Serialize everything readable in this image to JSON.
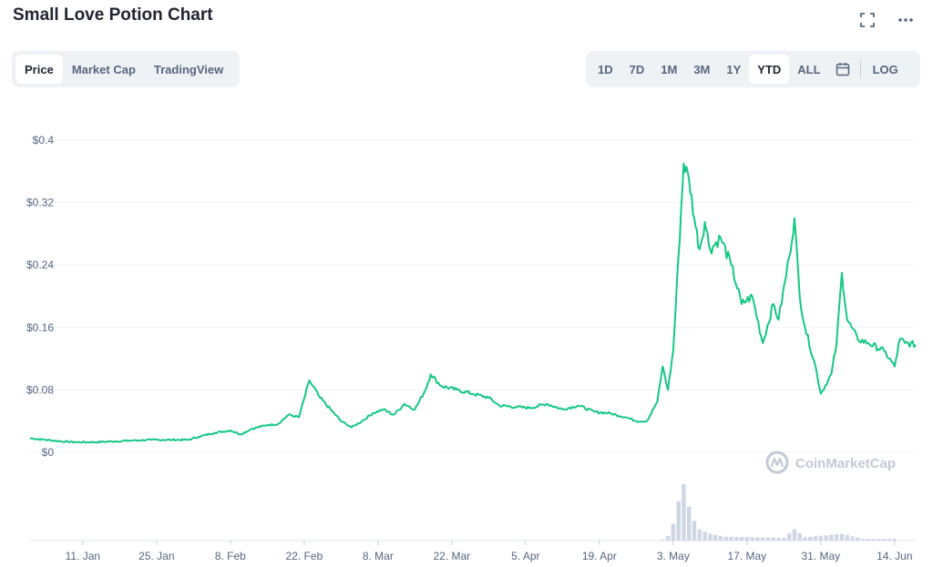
{
  "header": {
    "title": "Small Love Potion Chart",
    "fullscreen_icon": "fullscreen-icon",
    "more_icon": "more-dots-icon"
  },
  "tabs": [
    {
      "label": "Price",
      "active": true
    },
    {
      "label": "Market Cap",
      "active": false
    },
    {
      "label": "TradingView",
      "active": false
    }
  ],
  "time_ranges": [
    {
      "label": "1D",
      "active": false
    },
    {
      "label": "7D",
      "active": false
    },
    {
      "label": "1M",
      "active": false
    },
    {
      "label": "3M",
      "active": false
    },
    {
      "label": "1Y",
      "active": false
    },
    {
      "label": "YTD",
      "active": true
    },
    {
      "label": "ALL",
      "active": false
    }
  ],
  "calendar_icon": "calendar-icon",
  "log_label": "LOG",
  "watermark": "CoinMarketCap",
  "colors": {
    "line": "#16c784",
    "volume": "#cfd6e4",
    "grid": "#eff2f5",
    "axis_text": "#58667e"
  },
  "chart_data": {
    "type": "line",
    "title": "",
    "xlabel": "",
    "ylabel": "",
    "ylim": [
      0,
      0.4
    ],
    "y_ticks": [
      {
        "value": 0,
        "label": "$0"
      },
      {
        "value": 0.08,
        "label": "$0.08"
      },
      {
        "value": 0.16,
        "label": "$0.16"
      },
      {
        "value": 0.24,
        "label": "$0.24"
      },
      {
        "value": 0.32,
        "label": "$0.32"
      },
      {
        "value": 0.4,
        "label": "$0.4"
      }
    ],
    "xlim": [
      "2021-01-01",
      "2021-06-18"
    ],
    "x_ticks": [
      {
        "date": "2021-01-11",
        "label": "11. Jan"
      },
      {
        "date": "2021-01-25",
        "label": "25. Jan"
      },
      {
        "date": "2021-02-08",
        "label": "8. Feb"
      },
      {
        "date": "2021-02-22",
        "label": "22. Feb"
      },
      {
        "date": "2021-03-08",
        "label": "8. Mar"
      },
      {
        "date": "2021-03-22",
        "label": "22. Mar"
      },
      {
        "date": "2021-04-05",
        "label": "5. Apr"
      },
      {
        "date": "2021-04-19",
        "label": "19. Apr"
      },
      {
        "date": "2021-05-03",
        "label": "3. May"
      },
      {
        "date": "2021-05-17",
        "label": "17. May"
      },
      {
        "date": "2021-05-31",
        "label": "31. May"
      },
      {
        "date": "2021-06-14",
        "label": "14. Jun"
      }
    ],
    "grid": true,
    "series": [
      {
        "points": [
          [
            "2021-01-01",
            0.018
          ],
          [
            "2021-01-04",
            0.016
          ],
          [
            "2021-01-07",
            0.014
          ],
          [
            "2021-01-10",
            0.013
          ],
          [
            "2021-01-13",
            0.013
          ],
          [
            "2021-01-17",
            0.014
          ],
          [
            "2021-01-20",
            0.015
          ],
          [
            "2021-01-24",
            0.016
          ],
          [
            "2021-01-28",
            0.016
          ],
          [
            "2021-01-31",
            0.016
          ],
          [
            "2021-02-02",
            0.02
          ],
          [
            "2021-02-05",
            0.025
          ],
          [
            "2021-02-08",
            0.028
          ],
          [
            "2021-02-10",
            0.023
          ],
          [
            "2021-02-12",
            0.03
          ],
          [
            "2021-02-15",
            0.035
          ],
          [
            "2021-02-17",
            0.036
          ],
          [
            "2021-02-19",
            0.048
          ],
          [
            "2021-02-21",
            0.045
          ],
          [
            "2021-02-23",
            0.092
          ],
          [
            "2021-02-25",
            0.07
          ],
          [
            "2021-02-27",
            0.055
          ],
          [
            "2021-03-01",
            0.04
          ],
          [
            "2021-03-03",
            0.032
          ],
          [
            "2021-03-05",
            0.04
          ],
          [
            "2021-03-07",
            0.05
          ],
          [
            "2021-03-09",
            0.055
          ],
          [
            "2021-03-11",
            0.048
          ],
          [
            "2021-03-13",
            0.062
          ],
          [
            "2021-03-15",
            0.055
          ],
          [
            "2021-03-17",
            0.08
          ],
          [
            "2021-03-18",
            0.1
          ],
          [
            "2021-03-20",
            0.085
          ],
          [
            "2021-03-23",
            0.08
          ],
          [
            "2021-03-26",
            0.075
          ],
          [
            "2021-03-29",
            0.07
          ],
          [
            "2021-03-31",
            0.06
          ],
          [
            "2021-04-03",
            0.058
          ],
          [
            "2021-04-06",
            0.057
          ],
          [
            "2021-04-09",
            0.062
          ],
          [
            "2021-04-12",
            0.055
          ],
          [
            "2021-04-15",
            0.06
          ],
          [
            "2021-04-18",
            0.052
          ],
          [
            "2021-04-21",
            0.05
          ],
          [
            "2021-04-24",
            0.045
          ],
          [
            "2021-04-26",
            0.04
          ],
          [
            "2021-04-28",
            0.04
          ],
          [
            "2021-04-30",
            0.065
          ],
          [
            "2021-05-01",
            0.11
          ],
          [
            "2021-05-02",
            0.08
          ],
          [
            "2021-05-03",
            0.13
          ],
          [
            "2021-05-04",
            0.25
          ],
          [
            "2021-05-05",
            0.37
          ],
          [
            "2021-05-06",
            0.35
          ],
          [
            "2021-05-07",
            0.3
          ],
          [
            "2021-05-08",
            0.26
          ],
          [
            "2021-05-09",
            0.295
          ],
          [
            "2021-05-10",
            0.26
          ],
          [
            "2021-05-12",
            0.275
          ],
          [
            "2021-05-14",
            0.24
          ],
          [
            "2021-05-16",
            0.19
          ],
          [
            "2021-05-18",
            0.2
          ],
          [
            "2021-05-20",
            0.14
          ],
          [
            "2021-05-22",
            0.19
          ],
          [
            "2021-05-23",
            0.17
          ],
          [
            "2021-05-25",
            0.25
          ],
          [
            "2021-05-26",
            0.3
          ],
          [
            "2021-05-27",
            0.2
          ],
          [
            "2021-05-28",
            0.16
          ],
          [
            "2021-05-30",
            0.11
          ],
          [
            "2021-05-31",
            0.075
          ],
          [
            "2021-06-02",
            0.1
          ],
          [
            "2021-06-03",
            0.14
          ],
          [
            "2021-06-04",
            0.23
          ],
          [
            "2021-06-05",
            0.17
          ],
          [
            "2021-06-07",
            0.145
          ],
          [
            "2021-06-09",
            0.14
          ],
          [
            "2021-06-12",
            0.13
          ],
          [
            "2021-06-14",
            0.11
          ],
          [
            "2021-06-15",
            0.145
          ],
          [
            "2021-06-16",
            0.14
          ],
          [
            "2021-06-18",
            0.138
          ]
        ]
      }
    ],
    "volume": {
      "points": [
        [
          "2021-05-01",
          0.02
        ],
        [
          "2021-05-02",
          0.08
        ],
        [
          "2021-05-03",
          0.3
        ],
        [
          "2021-05-04",
          0.7
        ],
        [
          "2021-05-05",
          1.0
        ],
        [
          "2021-05-06",
          0.6
        ],
        [
          "2021-05-07",
          0.35
        ],
        [
          "2021-05-08",
          0.2
        ],
        [
          "2021-05-10",
          0.12
        ],
        [
          "2021-05-13",
          0.07
        ],
        [
          "2021-05-17",
          0.06
        ],
        [
          "2021-05-24",
          0.05
        ],
        [
          "2021-05-26",
          0.2
        ],
        [
          "2021-05-28",
          0.06
        ],
        [
          "2021-06-04",
          0.12
        ],
        [
          "2021-06-08",
          0.03
        ],
        [
          "2021-06-15",
          0.03
        ]
      ]
    }
  }
}
